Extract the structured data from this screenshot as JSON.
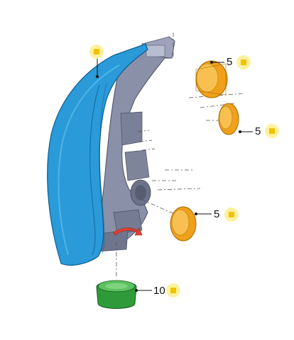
{
  "callouts": [
    {
      "id": "cap-top",
      "number": "5"
    },
    {
      "id": "cap-middle",
      "number": "5"
    },
    {
      "id": "cap-lower",
      "number": "5"
    },
    {
      "id": "bulb-cover",
      "number": "10"
    }
  ],
  "colors": {
    "housing_blue": "#2a9ad8",
    "housing_dark": "#0d5e93",
    "body_gray": "#8a90a8",
    "cap_orange": "#f0a01a",
    "cover_green": "#2f9a3a",
    "marker_fill": "#f4c000",
    "marker_glow": "#fbf2a0",
    "arrow_red": "#e04030"
  },
  "icons": [
    "info-marker-icon",
    "rotate-arrow-icon"
  ]
}
